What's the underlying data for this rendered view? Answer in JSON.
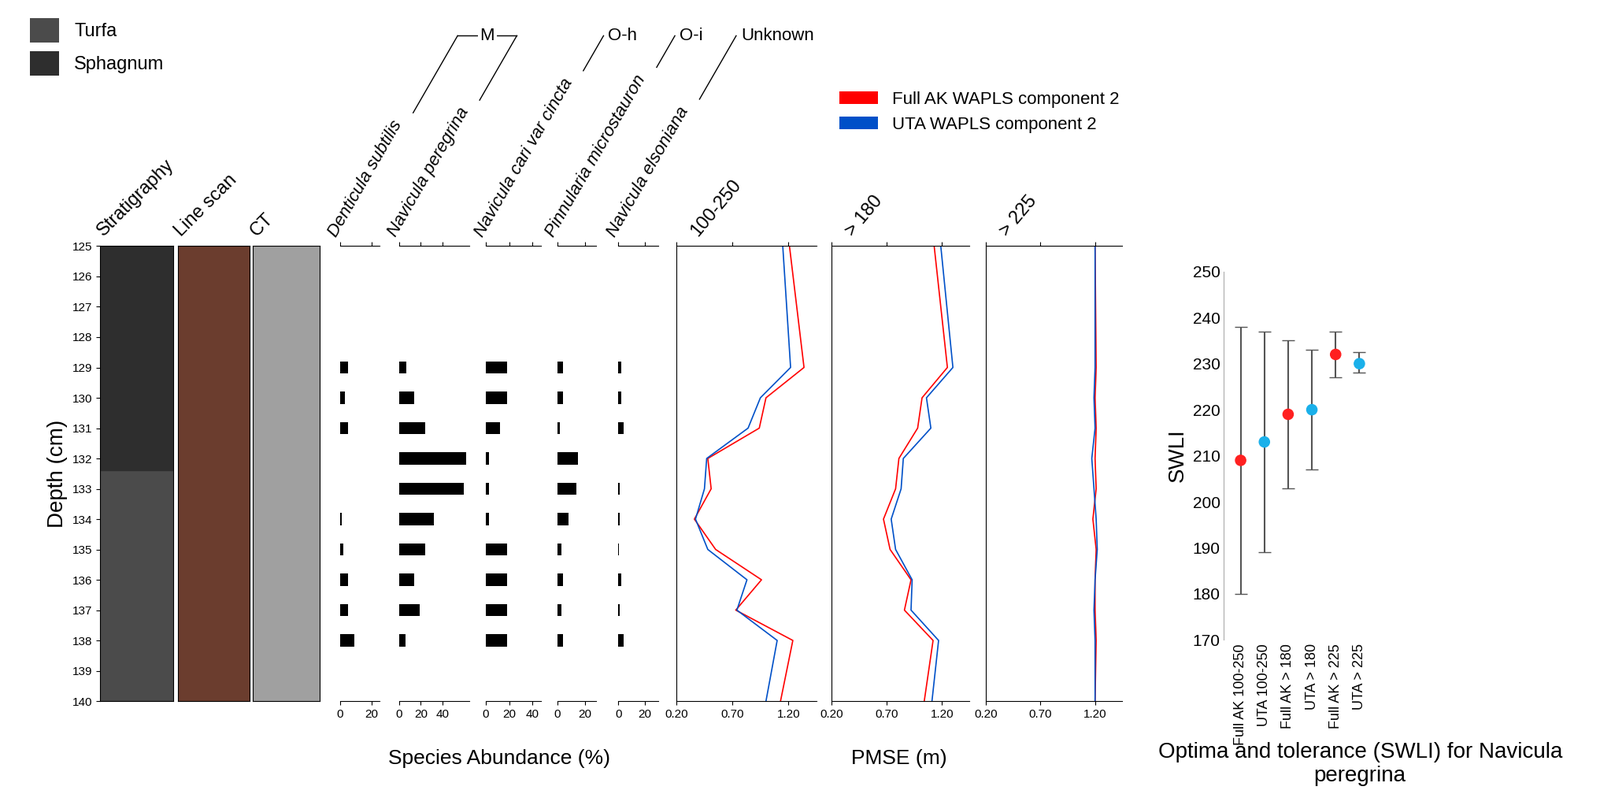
{
  "chart_data": [
    {
      "type": "stratigraphy",
      "title": "Stratigraphy",
      "ylabel": "Depth (cm)",
      "ylim": [
        140,
        125
      ],
      "yticks": [
        125,
        126,
        127,
        128,
        129,
        130,
        131,
        132,
        133,
        134,
        135,
        136,
        137,
        138,
        139,
        140
      ],
      "legend": "upper left",
      "layers": [
        {
          "name": "Turfa",
          "top": 132.4,
          "bottom": 140,
          "color": "#4b4b4b"
        },
        {
          "name": "Sphagnum",
          "top": 125,
          "bottom": 132.4,
          "color": "#2e2e2e"
        }
      ]
    },
    {
      "type": "core_image",
      "title": "Line scan",
      "color": "#6b3d2e",
      "ylim": [
        140,
        125
      ],
      "tick_labels": false
    },
    {
      "type": "core_image",
      "title": "CT",
      "color": "#a0a0a0",
      "ylim": [
        140,
        125
      ],
      "tick_labels": false
    },
    {
      "type": "bar",
      "orientation": "horizontal",
      "xlabel": "Species Abundance (%)",
      "color": "#000000",
      "tick_labels": "x",
      "ylim": [
        140,
        125
      ],
      "y": [
        129,
        130,
        131,
        132,
        133,
        134,
        135,
        136,
        137,
        138
      ],
      "panels": [
        {
          "name": "Denticula subtilis",
          "group": "M",
          "xlim": [
            0,
            25
          ],
          "xticks": [
            0,
            20
          ],
          "values": [
            5,
            3,
            5,
            0,
            0,
            1,
            2,
            5,
            5,
            9
          ]
        },
        {
          "name": "Navicula peregrina",
          "group": "M",
          "xlim": [
            0,
            65
          ],
          "xticks": [
            0,
            20,
            40
          ],
          "values": [
            7,
            14,
            24,
            62,
            60,
            32,
            24,
            14,
            19,
            6
          ]
        },
        {
          "name": "Navicula cari var cincta",
          "group": "O-h",
          "xlim": [
            0,
            47
          ],
          "xticks": [
            0,
            20,
            40
          ],
          "values": [
            18,
            18,
            12,
            3,
            3,
            3,
            18,
            18,
            18,
            18
          ]
        },
        {
          "name": "Pinnularia microstauron",
          "group": "O-i",
          "xlim": [
            0,
            28
          ],
          "xticks": [
            0,
            20
          ],
          "values": [
            4,
            4,
            2,
            15,
            14,
            8,
            3,
            4,
            3,
            4
          ]
        },
        {
          "name": "Navicula elsoniana",
          "group": "Unknown",
          "xlim": [
            0,
            30
          ],
          "xticks": [
            0,
            20
          ],
          "values": [
            2,
            2,
            4,
            0,
            1,
            1,
            0.5,
            2,
            1,
            4
          ]
        }
      ]
    },
    {
      "type": "line",
      "xlabel": "PMSE (m)",
      "legend": "upper left",
      "tick_labels": "x",
      "ylim": [
        140,
        125
      ],
      "y": [
        125,
        129,
        130,
        131,
        132,
        133,
        134,
        135,
        136,
        137,
        138,
        140
      ],
      "series": [
        {
          "name": "Full AK WAPLS component 2",
          "color": "#ff0000"
        },
        {
          "name": "UTA WAPLS component 2",
          "color": "#0050c8"
        }
      ],
      "panels": [
        {
          "title": "100-250",
          "xlim": [
            0.2,
            1.45
          ],
          "xticks": [
            {
              "value": 0.2,
              "label": "0.20"
            },
            {
              "value": 0.7,
              "label": "0.70"
            },
            {
              "value": 1.2,
              "label": "1.20"
            }
          ],
          "values": [
            [
              1.21,
              1.34,
              1.0,
              0.94,
              0.48,
              0.51,
              0.36,
              0.55,
              0.96,
              0.73,
              1.24,
              1.13
            ],
            [
              1.15,
              1.22,
              0.95,
              0.84,
              0.47,
              0.45,
              0.37,
              0.48,
              0.83,
              0.74,
              1.1,
              1.0
            ]
          ]
        },
        {
          "title": "> 180",
          "xlim": [
            0.2,
            1.45
          ],
          "xticks": [
            {
              "value": 0.2,
              "label": "0.20"
            },
            {
              "value": 0.7,
              "label": "0.70"
            },
            {
              "value": 1.2,
              "label": "1.20"
            }
          ],
          "values": [
            [
              1.13,
              1.25,
              1.02,
              0.98,
              0.81,
              0.78,
              0.67,
              0.73,
              0.92,
              0.86,
              1.12,
              1.04
            ],
            [
              1.19,
              1.3,
              1.06,
              1.1,
              0.85,
              0.83,
              0.74,
              0.78,
              0.93,
              0.92,
              1.17,
              1.11
            ]
          ]
        },
        {
          "title": "> 225",
          "xlim": [
            0.2,
            1.45
          ],
          "xticks": [
            {
              "value": 0.2,
              "label": "0.20"
            },
            {
              "value": 0.7,
              "label": "0.70"
            },
            {
              "value": 1.2,
              "label": "1.20"
            }
          ],
          "values": [
            [
              1.2,
              1.21,
              1.2,
              1.21,
              1.2,
              1.21,
              1.18,
              1.21,
              1.2,
              1.2,
              1.21,
              1.2
            ],
            [
              1.2,
              1.2,
              1.19,
              1.2,
              1.17,
              1.19,
              1.21,
              1.22,
              1.2,
              1.19,
              1.2,
              1.2
            ]
          ]
        }
      ]
    },
    {
      "type": "scatter",
      "title": "Optima and tolerance (SWLI) for Navicula peregrina",
      "ylabel": "SWLI",
      "marker": "o",
      "categories": [
        "Full AK 100-250",
        "UTA 100-250",
        "Full AK > 180",
        "UTA > 180",
        "Full AK > 225",
        "UTA > 225"
      ],
      "values": [
        209,
        213,
        219,
        220,
        232,
        230
      ],
      "lower": [
        180,
        189,
        203,
        207,
        227,
        228
      ],
      "upper": [
        238,
        237,
        235,
        233,
        237,
        232.5
      ],
      "colors": [
        "#ff2020",
        "#1ab0ea",
        "#ff2020",
        "#1ab0ea",
        "#ff2020",
        "#1ab0ea"
      ],
      "ylim": [
        170,
        250
      ],
      "yticks": [
        170,
        180,
        190,
        200,
        210,
        220,
        230,
        240,
        250
      ]
    }
  ]
}
